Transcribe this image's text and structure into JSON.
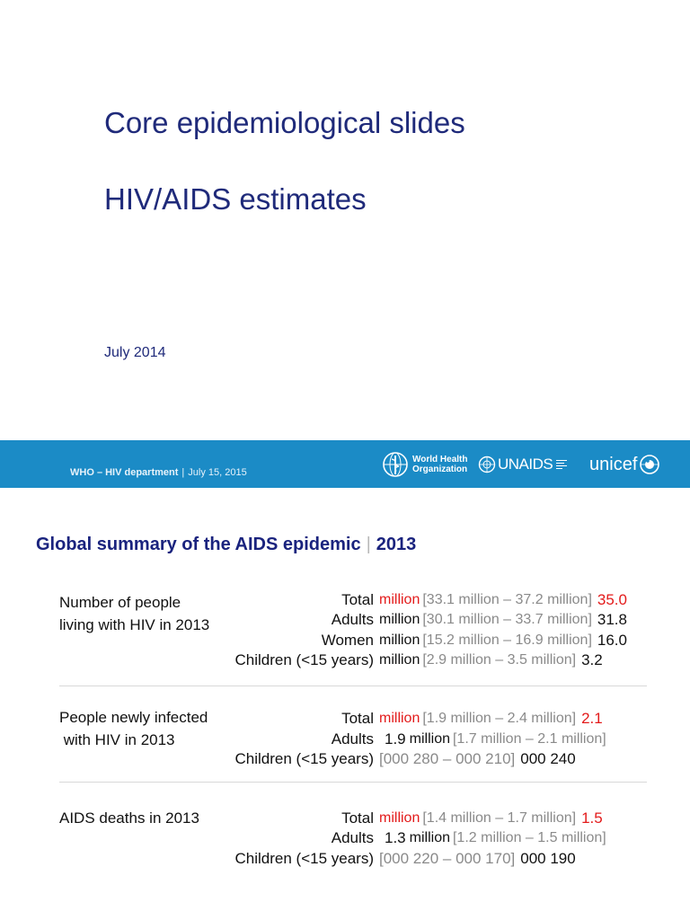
{
  "slide1": {
    "title_line1": "Core epidemiological slides",
    "title_line2": "HIV/AIDS estimates",
    "date": "July 2014"
  },
  "banner": {
    "dept": "WHO – HIV department",
    "separator": "|",
    "dept_date": "July 15, 2015",
    "who_line1": "World Health",
    "who_line2": "Organization",
    "unaids": "UNAIDS",
    "unicef": "unicef",
    "color": "#1b8bc6"
  },
  "slide2": {
    "title": "Global summary of the AIDS epidemic",
    "title_sep": "|",
    "title_year": "2013",
    "sections": [
      {
        "label_lines": [
          "Number of people",
          "living with HIV in 2013"
        ],
        "rows": [
          {
            "label": "Total",
            "unit": "million",
            "range": "[33.1 million – 37.2 million]",
            "value": "35.0",
            "highlight": true
          },
          {
            "label": "Adults",
            "unit": "million",
            "range": "[30.1 million – 33.7 million]",
            "value": "31.8"
          },
          {
            "label": "Women",
            "unit": "million",
            "range": "[15.2 million – 16.9 million]",
            "value": "16.0"
          },
          {
            "label": "Children (<15 years)",
            "unit": "million",
            "range": "[2.9 million – 3.5 million]",
            "value": "3.2"
          }
        ]
      },
      {
        "label_lines": [
          "People newly infected",
          " with HIV in 2013"
        ],
        "rows": [
          {
            "label": "Total",
            "unit": "million",
            "range": "[1.9 million – 2.4 million]",
            "value": "2.1",
            "highlight": true
          },
          {
            "label": "Adults",
            "num": "1.9",
            "unit": "million",
            "range": "[1.7 million – 2.1 million]"
          },
          {
            "label": "Children (<15 years)",
            "range": "[000 280 – 000 210]",
            "value": "000 240"
          }
        ]
      },
      {
        "label_lines": [
          "AIDS deaths in 2013"
        ],
        "rows": [
          {
            "label": "Total",
            "unit": "million",
            "range": "[1.4 million – 1.7 million]",
            "value": "1.5",
            "highlight": true
          },
          {
            "label": "Adults",
            "num": "1.3",
            "unit": "million",
            "range": "[1.2 million – 1.5 million]"
          },
          {
            "label": "Children (<15 years)",
            "range": "[000 220 – 000 170]",
            "value": "000 190"
          }
        ]
      }
    ],
    "colors": {
      "title": "#1a237e",
      "highlight": "#e31b1b",
      "range": "#8a8a8a"
    }
  }
}
